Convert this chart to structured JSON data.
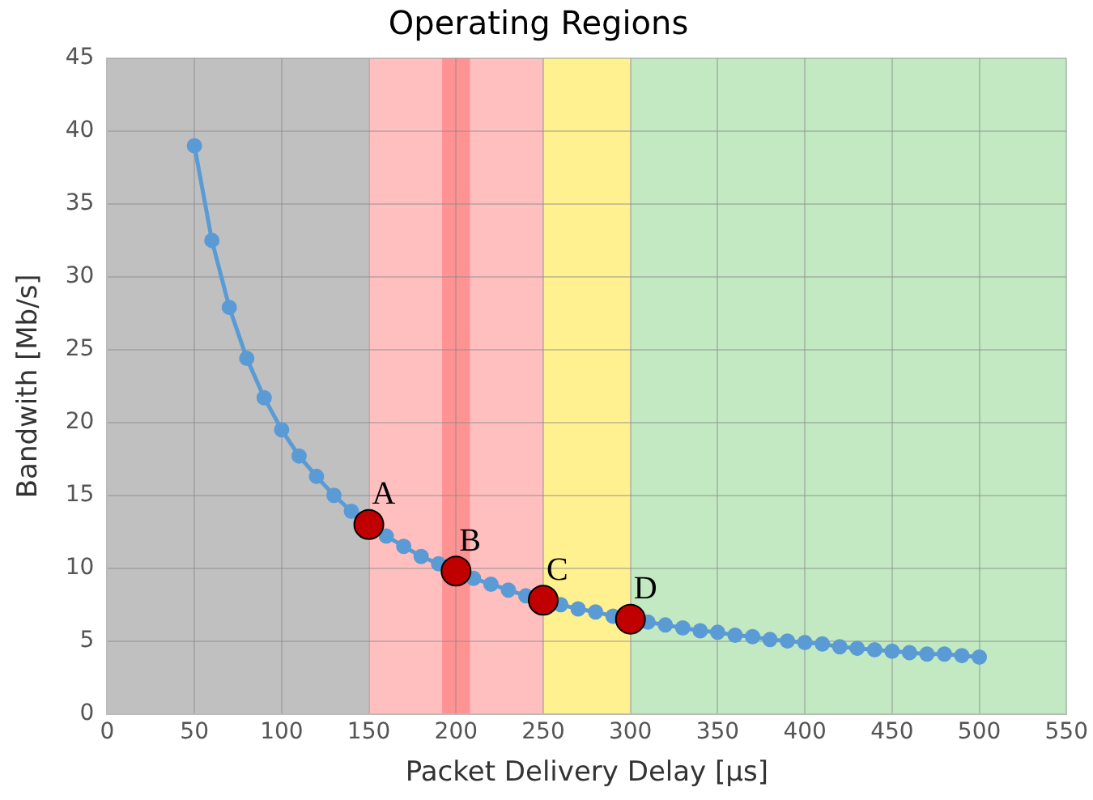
{
  "chart_data": {
    "type": "line",
    "title": "Operating Regions",
    "xlabel": "Packet Delivery Delay [µs]",
    "ylabel": "Bandwith [Mb/s]",
    "xlim": [
      0,
      550
    ],
    "xticks": [
      0,
      50,
      100,
      150,
      200,
      250,
      300,
      350,
      400,
      450,
      500,
      550
    ],
    "ylim": [
      0,
      45
    ],
    "yticks": [
      0,
      5,
      10,
      15,
      20,
      25,
      30,
      35,
      40,
      45
    ],
    "grid": true,
    "legend": false,
    "marker": "circle",
    "line_style": "solid",
    "series": [
      {
        "type": "line",
        "color": "#5b9bd5",
        "x": [
          50,
          60,
          70,
          80,
          90,
          100,
          110,
          120,
          130,
          140,
          150,
          160,
          170,
          180,
          190,
          200,
          210,
          220,
          230,
          240,
          250,
          260,
          270,
          280,
          290,
          300,
          310,
          320,
          330,
          340,
          350,
          360,
          370,
          380,
          390,
          400,
          410,
          420,
          430,
          440,
          450,
          460,
          470,
          480,
          490,
          500
        ],
        "values": [
          39.0,
          32.5,
          27.9,
          24.4,
          21.7,
          19.5,
          17.7,
          16.3,
          15.0,
          13.9,
          null,
          12.2,
          11.5,
          10.8,
          10.3,
          null,
          9.3,
          8.9,
          8.5,
          8.1,
          null,
          7.5,
          7.2,
          7.0,
          6.7,
          null,
          6.3,
          6.1,
          5.9,
          5.7,
          5.6,
          5.4,
          5.3,
          5.1,
          5.0,
          4.9,
          4.8,
          4.6,
          4.5,
          4.4,
          4.3,
          4.2,
          4.1,
          4.1,
          4.0,
          3.9
        ]
      },
      {
        "type": "scatter",
        "color": "#c00000",
        "x": [
          150,
          200,
          250,
          300
        ],
        "values": [
          13.0,
          9.8,
          7.8,
          6.5
        ]
      }
    ],
    "bands": [
      {
        "axis": "x",
        "from": 0,
        "to": 150,
        "color": "#c0c0c0"
      },
      {
        "axis": "x",
        "from": 150,
        "to": 250,
        "color": "#ffbfbf"
      },
      {
        "axis": "x",
        "from": 192,
        "to": 208,
        "color": "#ff9393"
      },
      {
        "axis": "x",
        "from": 250,
        "to": 300,
        "color": "#fff190"
      },
      {
        "axis": "x",
        "from": 300,
        "to": 550,
        "color": "#c2e9c2"
      }
    ],
    "annotations": [
      {
        "text": "A",
        "x": 150,
        "y": 13.0
      },
      {
        "text": "B",
        "x": 200,
        "y": 9.8
      },
      {
        "text": "C",
        "x": 250,
        "y": 7.8
      },
      {
        "text": "D",
        "x": 300,
        "y": 6.5
      }
    ]
  }
}
